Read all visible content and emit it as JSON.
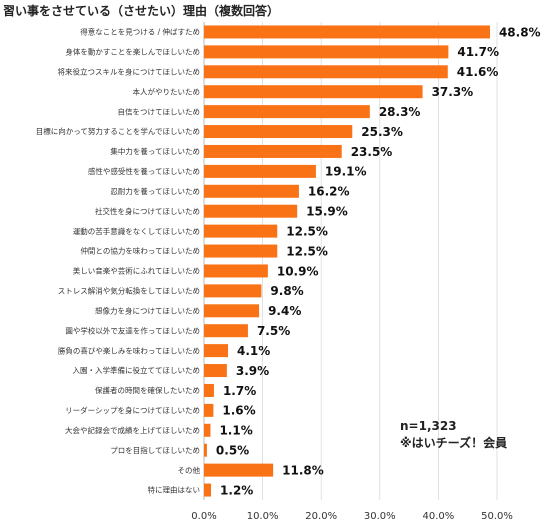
{
  "title": "習い事をさせている（させたい）理由（複数回答）",
  "note": {
    "sample": "n=1,323",
    "source": "※はいチーズ！会員"
  },
  "colors": {
    "bar": "#f97316",
    "grid": "#d9d9d9",
    "axis": "#bbbbbb"
  },
  "chart_data": {
    "type": "bar",
    "orientation": "horizontal",
    "title": "習い事をさせている（させたい）理由（複数回答）",
    "xlim": [
      0,
      50
    ],
    "xticks": [
      "0.0%",
      "10.0%",
      "20.0%",
      "30.0%",
      "40.0%",
      "50.0%"
    ],
    "grid": true,
    "unit": "%",
    "categories": [
      "得意なことを見つける / 伸ばすため",
      "身体を動かすことを楽しんでほしいため",
      "将来役立つスキルを身につけてほしいため",
      "本人がやりたいため",
      "自信をつけてほしいため",
      "目標に向かって努力することを学んでほしいため",
      "集中力を養ってほしいため",
      "感性や感受性を養ってほしいため",
      "忍耐力を養ってほしいため",
      "社交性を身につけてほしいため",
      "運動の苦手意識をなくしてほしいため",
      "仲間との協力を味わってほしいため",
      "美しい音楽や芸術にふれてほしいため",
      "ストレス解消や気分転換をしてほしいため",
      "想像力を身につけてほしいため",
      "園や学校以外で友達を作ってほしいため",
      "勝負の喜びや楽しみを味わってほしいため",
      "入園・入学準備に役立ててほしいため",
      "保護者の時間を確保したいため",
      "リーダーシップを身につけてほしいため",
      "大会や記録会で成績を上げてほしいため",
      "プロを目指してほしいため",
      "その他",
      "特に理由はない"
    ],
    "values": [
      48.8,
      41.7,
      41.6,
      37.3,
      28.3,
      25.3,
      23.5,
      19.1,
      16.2,
      15.9,
      12.5,
      12.5,
      10.9,
      9.8,
      9.4,
      7.5,
      4.1,
      3.9,
      1.7,
      1.6,
      1.1,
      0.5,
      11.8,
      1.2
    ],
    "value_labels": [
      "48.8%",
      "41.7%",
      "41.6%",
      "37.3%",
      "28.3%",
      "25.3%",
      "23.5%",
      "19.1%",
      "16.2%",
      "15.9%",
      "12.5%",
      "12.5%",
      "10.9%",
      "9.8%",
      "9.4%",
      "7.5%",
      "4.1%",
      "3.9%",
      "1.7%",
      "1.6%",
      "1.1%",
      "0.5%",
      "11.8%",
      "1.2%"
    ]
  }
}
